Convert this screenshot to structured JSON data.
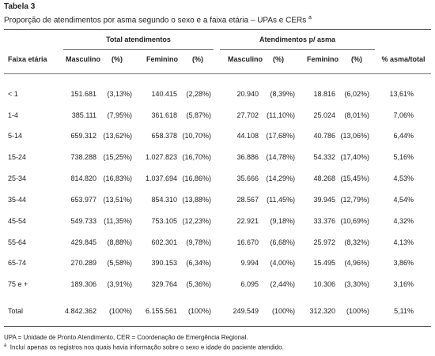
{
  "header": {
    "title": "Tabela 3",
    "subtitle": "Proporção de atendimentos por asma segundo o sexo e a faixa etária – UPAs e CERs",
    "subtitle_note": "a"
  },
  "table": {
    "groups": [
      "Total atendimentos",
      "Atendimentos p/ asma"
    ],
    "columns": [
      "Faixa etária",
      "Masculino",
      "(%)",
      "Feminino",
      "(%)",
      "Masculino",
      "(%)",
      "Feminino",
      "(%)",
      "% asma/total"
    ],
    "rows": [
      [
        "< 1",
        "151.681",
        "(3,13%)",
        "140.415",
        "(2,28%)",
        "20.940",
        "(8,39%)",
        "18.816",
        "(6,02%)",
        "13,61%"
      ],
      [
        "1-4",
        "385.111",
        "(7,95%)",
        "361.618",
        "(5,87%)",
        "27.702",
        "(11,10%)",
        "25.024",
        "(8,01%)",
        "7,06%"
      ],
      [
        "5-14",
        "659.312",
        "(13,62%)",
        "658.378",
        "(10,70%)",
        "44.108",
        "(17,68%)",
        "40.786",
        "(13,06%)",
        "6,44%"
      ],
      [
        "15-24",
        "738.288",
        "(15,25%)",
        "1.027.823",
        "(16,70%)",
        "36.886",
        "(14,78%)",
        "54.332",
        "(17,40%)",
        "5,16%"
      ],
      [
        "25-34",
        "814.820",
        "(16,83%)",
        "1.037.694",
        "(16,86%)",
        "35.666",
        "(14,29%)",
        "48.268",
        "(15,45%)",
        "4,53%"
      ],
      [
        "35-44",
        "653.977",
        "(13,51%)",
        "854.310",
        "(13,88%)",
        "28.567",
        "(11,45%)",
        "39.945",
        "(12,79%)",
        "4,54%"
      ],
      [
        "45-54",
        "549.733",
        "(11,35%)",
        "753.105",
        "(12,23%)",
        "22.921",
        "(9,18%)",
        "33.376",
        "(10,69%)",
        "4,32%"
      ],
      [
        "55-64",
        "429.845",
        "(8,88%)",
        "602.301",
        "(9,78%)",
        "16.670",
        "(6,68%)",
        "25.972",
        "(8,32%)",
        "4,13%"
      ],
      [
        "65-74",
        "270.289",
        "(5,58%)",
        "390.153",
        "(6,34%)",
        "9.994",
        "(4,00%)",
        "15.495",
        "(4,96%)",
        "3,86%"
      ],
      [
        "75 e +",
        "189.306",
        "(3,91%)",
        "329.764",
        "(5,36%)",
        "6.095",
        "(2,44%)",
        "10.306",
        "(3,30%)",
        "3,16%"
      ],
      [
        "Total",
        "4.842.362",
        "(100%)",
        "6.155.561",
        "(100%)",
        "249.549",
        "(100%)",
        "312.320",
        "(100%)",
        "5,11%"
      ]
    ]
  },
  "footnotes": [
    {
      "text": "UPA = Unidade de Pronto Atendimento, CER = Coordenação de Emergência Regional."
    },
    {
      "marker": "a",
      "text": "Incluí apenas os registros nos quais havia informação sobre o sexo e idade do paciente atendido."
    }
  ]
}
